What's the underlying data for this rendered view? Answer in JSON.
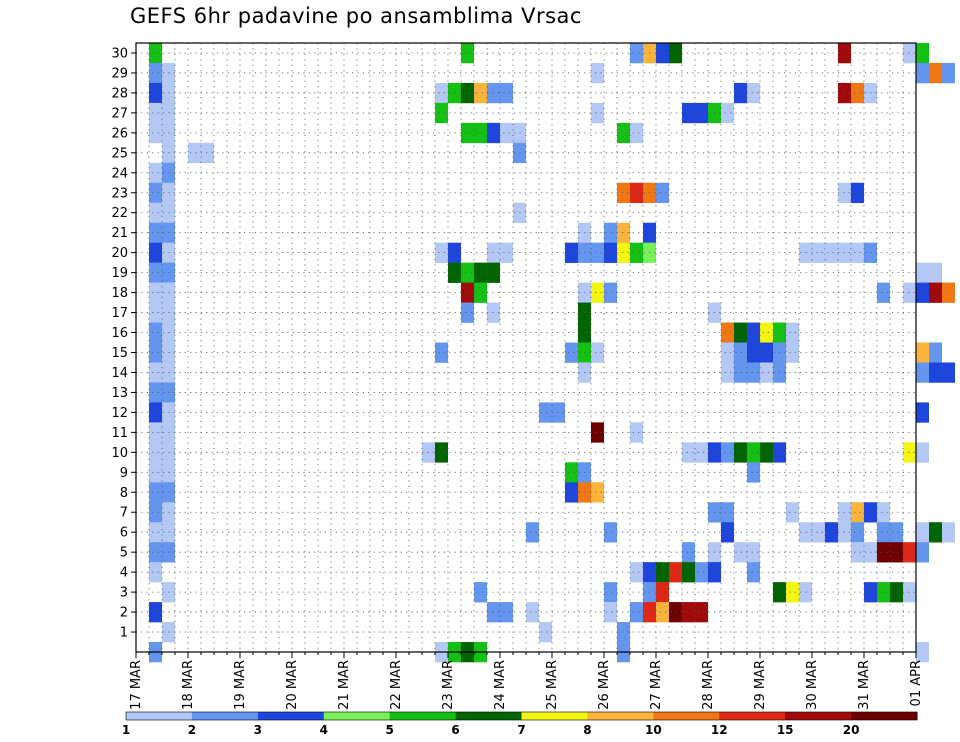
{
  "chart_data": {
    "type": "heatmap",
    "title": "GEFS 6hr padavine po ansamblima Vrsac",
    "xlabel": "",
    "ylabel": "",
    "y_ticks": [
      1,
      2,
      3,
      4,
      5,
      6,
      7,
      8,
      9,
      10,
      11,
      12,
      13,
      14,
      15,
      16,
      17,
      18,
      19,
      20,
      21,
      22,
      23,
      24,
      25,
      26,
      27,
      28,
      29,
      30
    ],
    "ylim": [
      0,
      30.5
    ],
    "x_ticks": [
      "17 MAR",
      "18 MAR",
      "19 MAR",
      "20 MAR",
      "21 MAR",
      "22 MAR",
      "23 MAR",
      "24 MAR",
      "25 MAR",
      "26 MAR",
      "27 MAR",
      "28 MAR",
      "29 MAR",
      "30 MAR",
      "31 MAR",
      "01 APR"
    ],
    "x_units": "6-hour steps from 17 MAR 00Z",
    "xlim": [
      0,
      61
    ],
    "grid": true,
    "legend": {
      "placement": "bottom",
      "labels": [
        "1",
        "2",
        "3",
        "4",
        "5",
        "6",
        "7",
        "8",
        "10",
        "12",
        "15",
        "20"
      ],
      "colors": [
        "#b4c8f5",
        "#6496f0",
        "#1e46dc",
        "#78f05a",
        "#14c014",
        "#006400",
        "#f5f514",
        "#fab43c",
        "#f07814",
        "#dc2814",
        "#a00a0a",
        "#6e0000"
      ]
    },
    "cells": [
      [
        1,
        30,
        4
      ],
      [
        1,
        29,
        1
      ],
      [
        1,
        28,
        2
      ],
      [
        1,
        27,
        0
      ],
      [
        1,
        26,
        0
      ],
      [
        1,
        24,
        0
      ],
      [
        1,
        23,
        1
      ],
      [
        1,
        22,
        0
      ],
      [
        1,
        21,
        1
      ],
      [
        1,
        20,
        2
      ],
      [
        1,
        19,
        1
      ],
      [
        1,
        18,
        0
      ],
      [
        1,
        17,
        0
      ],
      [
        1,
        16,
        1
      ],
      [
        1,
        15,
        1
      ],
      [
        1,
        14,
        0
      ],
      [
        1,
        13,
        1
      ],
      [
        1,
        12,
        2
      ],
      [
        1,
        11,
        0
      ],
      [
        1,
        10,
        0
      ],
      [
        1,
        9,
        0
      ],
      [
        1,
        8,
        1
      ],
      [
        1,
        7,
        1
      ],
      [
        1,
        6,
        0
      ],
      [
        1,
        5,
        1
      ],
      [
        1,
        4,
        0
      ],
      [
        1,
        2,
        2
      ],
      [
        1,
        0,
        1
      ],
      [
        2,
        29,
        0
      ],
      [
        2,
        28,
        0
      ],
      [
        2,
        27,
        0
      ],
      [
        2,
        26,
        0
      ],
      [
        2,
        25,
        0
      ],
      [
        2,
        24,
        1
      ],
      [
        2,
        23,
        0
      ],
      [
        2,
        22,
        0
      ],
      [
        2,
        21,
        1
      ],
      [
        2,
        20,
        0
      ],
      [
        2,
        19,
        1
      ],
      [
        2,
        18,
        0
      ],
      [
        2,
        17,
        0
      ],
      [
        2,
        16,
        0
      ],
      [
        2,
        15,
        0
      ],
      [
        2,
        14,
        0
      ],
      [
        2,
        13,
        1
      ],
      [
        2,
        12,
        0
      ],
      [
        2,
        11,
        0
      ],
      [
        2,
        10,
        0
      ],
      [
        2,
        9,
        0
      ],
      [
        2,
        8,
        1
      ],
      [
        2,
        7,
        0
      ],
      [
        2,
        6,
        0
      ],
      [
        2,
        5,
        1
      ],
      [
        2,
        3,
        0
      ],
      [
        2,
        1,
        0
      ],
      [
        4,
        25,
        0
      ],
      [
        5,
        25,
        0
      ],
      [
        22,
        10,
        0
      ],
      [
        23,
        28,
        0
      ],
      [
        23,
        27,
        4
      ],
      [
        23,
        20,
        0
      ],
      [
        23,
        15,
        1
      ],
      [
        23,
        10,
        5
      ],
      [
        23,
        0,
        0
      ],
      [
        24,
        28,
        4
      ],
      [
        24,
        20,
        2
      ],
      [
        24,
        19,
        5
      ],
      [
        24,
        0,
        4
      ],
      [
        25,
        30,
        4
      ],
      [
        25,
        28,
        5
      ],
      [
        25,
        26,
        4
      ],
      [
        25,
        19,
        4
      ],
      [
        25,
        18,
        10
      ],
      [
        25,
        17,
        1
      ],
      [
        25,
        0,
        5
      ],
      [
        26,
        28,
        7
      ],
      [
        26,
        26,
        4
      ],
      [
        26,
        19,
        5
      ],
      [
        26,
        18,
        4
      ],
      [
        26,
        3,
        1
      ],
      [
        26,
        0,
        4
      ],
      [
        27,
        28,
        1
      ],
      [
        27,
        26,
        2
      ],
      [
        27,
        20,
        0
      ],
      [
        27,
        19,
        5
      ],
      [
        27,
        17,
        0
      ],
      [
        27,
        2,
        1
      ],
      [
        28,
        28,
        1
      ],
      [
        28,
        26,
        0
      ],
      [
        28,
        20,
        0
      ],
      [
        28,
        2,
        1
      ],
      [
        29,
        26,
        0
      ],
      [
        29,
        25,
        1
      ],
      [
        29,
        22,
        0
      ],
      [
        30,
        6,
        1
      ],
      [
        30,
        2,
        0
      ],
      [
        31,
        12,
        1
      ],
      [
        31,
        1,
        0
      ],
      [
        32,
        12,
        1
      ],
      [
        33,
        20,
        2
      ],
      [
        33,
        15,
        1
      ],
      [
        33,
        9,
        4
      ],
      [
        33,
        8,
        2
      ],
      [
        34,
        21,
        0
      ],
      [
        34,
        20,
        1
      ],
      [
        34,
        18,
        0
      ],
      [
        34,
        17,
        5
      ],
      [
        34,
        16,
        5
      ],
      [
        34,
        15,
        4
      ],
      [
        34,
        14,
        0
      ],
      [
        34,
        9,
        1
      ],
      [
        34,
        8,
        8
      ],
      [
        35,
        29,
        0
      ],
      [
        35,
        27,
        0
      ],
      [
        35,
        20,
        1
      ],
      [
        35,
        18,
        6
      ],
      [
        35,
        15,
        0
      ],
      [
        35,
        11,
        11
      ],
      [
        35,
        8,
        7
      ],
      [
        36,
        21,
        1
      ],
      [
        36,
        20,
        2
      ],
      [
        36,
        18,
        1
      ],
      [
        36,
        6,
        1
      ],
      [
        36,
        3,
        1
      ],
      [
        36,
        2,
        0
      ],
      [
        37,
        26,
        4
      ],
      [
        37,
        23,
        8
      ],
      [
        37,
        21,
        7
      ],
      [
        37,
        20,
        6
      ],
      [
        37,
        1,
        1
      ],
      [
        37,
        0,
        1
      ],
      [
        38,
        30,
        1
      ],
      [
        38,
        26,
        0
      ],
      [
        38,
        23,
        9
      ],
      [
        38,
        20,
        4
      ],
      [
        38,
        11,
        0
      ],
      [
        38,
        4,
        0
      ],
      [
        38,
        2,
        1
      ],
      [
        39,
        30,
        7
      ],
      [
        39,
        23,
        8
      ],
      [
        39,
        21,
        2
      ],
      [
        39,
        20,
        3
      ],
      [
        39,
        4,
        2
      ],
      [
        39,
        3,
        1
      ],
      [
        39,
        2,
        9
      ],
      [
        40,
        30,
        2
      ],
      [
        40,
        23,
        1
      ],
      [
        40,
        4,
        5
      ],
      [
        40,
        3,
        9
      ],
      [
        40,
        2,
        7
      ],
      [
        41,
        30,
        5
      ],
      [
        41,
        4,
        9
      ],
      [
        41,
        2,
        11
      ],
      [
        42,
        27,
        2
      ],
      [
        42,
        10,
        0
      ],
      [
        42,
        5,
        1
      ],
      [
        42,
        4,
        5
      ],
      [
        42,
        2,
        10
      ],
      [
        43,
        27,
        2
      ],
      [
        43,
        10,
        0
      ],
      [
        43,
        4,
        1
      ],
      [
        43,
        2,
        10
      ],
      [
        44,
        27,
        4
      ],
      [
        44,
        17,
        0
      ],
      [
        44,
        10,
        2
      ],
      [
        44,
        7,
        1
      ],
      [
        44,
        5,
        0
      ],
      [
        44,
        4,
        2
      ],
      [
        45,
        27,
        0
      ],
      [
        45,
        16,
        8
      ],
      [
        45,
        15,
        0
      ],
      [
        45,
        14,
        0
      ],
      [
        45,
        10,
        1
      ],
      [
        45,
        7,
        1
      ],
      [
        45,
        6,
        2
      ],
      [
        46,
        28,
        2
      ],
      [
        46,
        16,
        5
      ],
      [
        46,
        15,
        1
      ],
      [
        46,
        14,
        1
      ],
      [
        46,
        10,
        5
      ],
      [
        46,
        5,
        0
      ],
      [
        47,
        28,
        0
      ],
      [
        47,
        16,
        2
      ],
      [
        47,
        15,
        2
      ],
      [
        47,
        14,
        1
      ],
      [
        47,
        10,
        4
      ],
      [
        47,
        9,
        1
      ],
      [
        47,
        5,
        0
      ],
      [
        47,
        4,
        1
      ],
      [
        48,
        16,
        6
      ],
      [
        48,
        15,
        2
      ],
      [
        48,
        14,
        0
      ],
      [
        48,
        10,
        5
      ],
      [
        49,
        16,
        4
      ],
      [
        49,
        15,
        1
      ],
      [
        49,
        14,
        1
      ],
      [
        49,
        10,
        2
      ],
      [
        49,
        3,
        5
      ],
      [
        50,
        16,
        0
      ],
      [
        50,
        15,
        0
      ],
      [
        50,
        7,
        0
      ],
      [
        50,
        3,
        6
      ],
      [
        51,
        20,
        0
      ],
      [
        51,
        6,
        0
      ],
      [
        51,
        3,
        0
      ],
      [
        52,
        20,
        0
      ],
      [
        52,
        6,
        0
      ],
      [
        53,
        20,
        0
      ],
      [
        53,
        6,
        2
      ],
      [
        54,
        30,
        10
      ],
      [
        54,
        28,
        10
      ],
      [
        54,
        23,
        0
      ],
      [
        54,
        20,
        0
      ],
      [
        54,
        7,
        0
      ],
      [
        54,
        6,
        0
      ],
      [
        55,
        28,
        8
      ],
      [
        55,
        23,
        2
      ],
      [
        55,
        20,
        0
      ],
      [
        55,
        7,
        7
      ],
      [
        55,
        6,
        1
      ],
      [
        55,
        5,
        0
      ],
      [
        56,
        28,
        0
      ],
      [
        56,
        20,
        1
      ],
      [
        56,
        7,
        2
      ],
      [
        56,
        5,
        0
      ],
      [
        56,
        3,
        2
      ],
      [
        57,
        18,
        1
      ],
      [
        57,
        7,
        0
      ],
      [
        57,
        6,
        1
      ],
      [
        57,
        5,
        11
      ],
      [
        57,
        3,
        4
      ],
      [
        58,
        6,
        1
      ],
      [
        58,
        5,
        11
      ],
      [
        58,
        3,
        5
      ],
      [
        59,
        30,
        0
      ],
      [
        59,
        18,
        0
      ],
      [
        59,
        10,
        6
      ],
      [
        59,
        5,
        9
      ],
      [
        59,
        3,
        0
      ],
      [
        60,
        30,
        4
      ],
      [
        60,
        29,
        1
      ],
      [
        60,
        19,
        0
      ],
      [
        60,
        18,
        2
      ],
      [
        60,
        15,
        7
      ],
      [
        60,
        14,
        1
      ],
      [
        60,
        12,
        2
      ],
      [
        60,
        10,
        0
      ],
      [
        60,
        6,
        0
      ],
      [
        60,
        5,
        1
      ],
      [
        60,
        0,
        0
      ],
      [
        61,
        29,
        8
      ],
      [
        61,
        19,
        0
      ],
      [
        61,
        18,
        10
      ],
      [
        61,
        15,
        1
      ],
      [
        61,
        14,
        2
      ],
      [
        61,
        6,
        5
      ],
      [
        62,
        29,
        1
      ],
      [
        62,
        18,
        8
      ],
      [
        62,
        14,
        2
      ],
      [
        62,
        6,
        0
      ]
    ]
  }
}
